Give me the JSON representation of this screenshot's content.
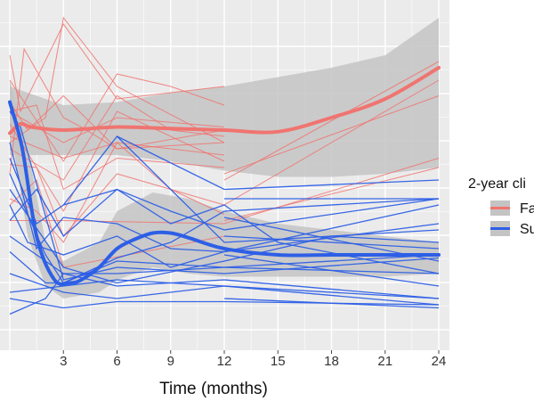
{
  "chart_data": {
    "type": "line",
    "xlabel": "Time (months)",
    "ylabel": "",
    "x_ticks": [
      "3",
      "6",
      "9",
      "12",
      "15",
      "18",
      "21",
      "24"
    ],
    "xlim": [
      0,
      25
    ],
    "ylim": [
      0,
      100
    ],
    "grid": true,
    "legend_placement": "right",
    "legend_title": "2-year cli",
    "colors": {
      "failure": "#f07470",
      "success": "#2d5fe6",
      "band": "#c4c4c4",
      "panel": "#ebebeb"
    },
    "series": [
      {
        "name": "Fa",
        "key": "failure",
        "smooth": [
          [
            0,
            37
          ],
          [
            0.6,
            34
          ],
          [
            1.2,
            35
          ],
          [
            3,
            36
          ],
          [
            6,
            35
          ],
          [
            9,
            35.5
          ],
          [
            12,
            36
          ],
          [
            15,
            36.5
          ],
          [
            18,
            32
          ],
          [
            21,
            26
          ],
          [
            24,
            16
          ]
        ],
        "band_upper": [
          [
            0,
            22
          ],
          [
            3,
            28
          ],
          [
            6,
            27
          ],
          [
            9,
            24
          ],
          [
            12,
            22
          ],
          [
            15,
            19
          ],
          [
            18,
            16
          ],
          [
            21,
            12
          ],
          [
            24,
            0
          ]
        ],
        "band_lower": [
          [
            0,
            44
          ],
          [
            3,
            44
          ],
          [
            6,
            44
          ],
          [
            9,
            46
          ],
          [
            12,
            49
          ],
          [
            15,
            51
          ],
          [
            18,
            51
          ],
          [
            21,
            50
          ],
          [
            24,
            48
          ]
        ],
        "patients": [
          [
            [
              0,
              12
            ],
            [
              0.6,
              30
            ],
            [
              3,
              2
            ],
            [
              6,
              26
            ],
            [
              12,
              22
            ]
          ],
          [
            [
              0,
              30
            ],
            [
              1.5,
              28
            ],
            [
              3,
              55
            ],
            [
              6,
              45
            ],
            [
              12,
              48
            ]
          ],
          [
            [
              0,
              30
            ],
            [
              3,
              40
            ],
            [
              6,
              32
            ],
            [
              12,
              35
            ]
          ],
          [
            [
              0,
              50
            ],
            [
              0.8,
              10
            ],
            [
              3,
              32
            ],
            [
              4,
              35
            ],
            [
              6,
              42
            ],
            [
              12,
              40
            ]
          ],
          [
            [
              0,
              27
            ],
            [
              1,
              36
            ],
            [
              3,
              25
            ],
            [
              6,
              42
            ],
            [
              12,
              36
            ]
          ],
          [
            [
              0,
              20
            ],
            [
              3,
              46
            ],
            [
              6,
              18
            ],
            [
              9,
              22
            ],
            [
              12,
              28
            ]
          ],
          [
            [
              0,
              40
            ],
            [
              2,
              32
            ],
            [
              3,
              0
            ],
            [
              6,
              22
            ],
            [
              12,
              40
            ]
          ],
          [
            [
              0,
              47
            ],
            [
              1.5,
              48
            ],
            [
              3,
              70
            ],
            [
              6,
              50
            ],
            [
              12,
              60
            ]
          ],
          [
            [
              0,
              34
            ],
            [
              3,
              62
            ],
            [
              6,
              30
            ],
            [
              12,
              46
            ]
          ],
          [
            [
              0,
              42
            ],
            [
              3,
              52
            ],
            [
              6,
              25
            ],
            [
              9,
              36
            ],
            [
              12,
              38
            ]
          ],
          [
            [
              0,
              58
            ],
            [
              1.5,
              62
            ],
            [
              3,
              72
            ],
            [
              6,
              40
            ],
            [
              9,
              55
            ],
            [
              12,
              63
            ]
          ],
          [
            [
              0,
              38
            ],
            [
              3,
              45
            ],
            [
              6,
              40
            ],
            [
              12,
              44
            ]
          ],
          [
            [
              0,
              60
            ],
            [
              1.5,
              52
            ],
            [
              3,
              80
            ],
            [
              12,
              70
            ]
          ],
          [
            [
              0,
              65
            ],
            [
              3,
              65
            ],
            [
              12,
              66
            ],
            [
              24,
              45
            ]
          ],
          [
            [
              12,
              60
            ],
            [
              24,
              20
            ]
          ],
          [
            [
              12,
              52
            ],
            [
              24,
              14
            ]
          ],
          [
            [
              12,
              50
            ],
            [
              24,
              25
            ]
          ],
          [
            [
              12,
              65
            ],
            [
              24,
              48
            ]
          ]
        ]
      },
      {
        "name": "Su",
        "key": "success",
        "smooth": [
          [
            0,
            27
          ],
          [
            0.7,
            42
          ],
          [
            1.5,
            70
          ],
          [
            2.5,
            84
          ],
          [
            3.4,
            85
          ],
          [
            4,
            84
          ],
          [
            5,
            80
          ],
          [
            6,
            74
          ],
          [
            7,
            71
          ],
          [
            8,
            69
          ],
          [
            9,
            69
          ],
          [
            10,
            70.5
          ],
          [
            12,
            74
          ],
          [
            15,
            76
          ],
          [
            18,
            76
          ],
          [
            21,
            76
          ],
          [
            24,
            76
          ]
        ],
        "band_upper": [
          [
            0,
            20
          ],
          [
            1,
            42
          ],
          [
            2,
            72
          ],
          [
            3,
            78
          ],
          [
            5,
            72
          ],
          [
            6,
            62
          ],
          [
            8,
            56
          ],
          [
            10,
            58
          ],
          [
            12,
            62
          ],
          [
            15,
            66
          ],
          [
            18,
            68
          ],
          [
            21,
            70
          ],
          [
            24,
            72
          ]
        ],
        "band_lower": [
          [
            0,
            34
          ],
          [
            1,
            70
          ],
          [
            2,
            86
          ],
          [
            3,
            90
          ],
          [
            5,
            88
          ],
          [
            6,
            84
          ],
          [
            8,
            80
          ],
          [
            10,
            82
          ],
          [
            12,
            83
          ],
          [
            15,
            83
          ],
          [
            18,
            83
          ],
          [
            21,
            83
          ],
          [
            24,
            82
          ]
        ],
        "patients": [
          [
            [
              0,
              30
            ],
            [
              0.6,
              35
            ],
            [
              3,
              84
            ],
            [
              6,
              80
            ],
            [
              12,
              82
            ],
            [
              24,
              77
            ]
          ],
          [
            [
              0,
              45
            ],
            [
              1.5,
              66
            ],
            [
              3,
              60
            ],
            [
              6,
              38
            ],
            [
              12,
              55
            ],
            [
              24,
              52
            ]
          ],
          [
            [
              0,
              50
            ],
            [
              2,
              76
            ],
            [
              3,
              85
            ],
            [
              6,
              77
            ],
            [
              9,
              72
            ],
            [
              12,
              62
            ],
            [
              24,
              58
            ]
          ],
          [
            [
              0,
              75
            ],
            [
              2,
              85
            ],
            [
              3,
              85
            ],
            [
              6,
              78
            ],
            [
              12,
              80
            ],
            [
              24,
              82
            ]
          ],
          [
            [
              0,
              82
            ],
            [
              3,
              88
            ],
            [
              6,
              90
            ],
            [
              12,
              86
            ],
            [
              24,
              90
            ]
          ],
          [
            [
              0,
              95
            ],
            [
              2,
              90
            ],
            [
              3,
              82
            ],
            [
              6,
              82
            ],
            [
              12,
              80
            ],
            [
              24,
              76
            ]
          ],
          [
            [
              0,
              60
            ],
            [
              1,
              72
            ],
            [
              3,
              76
            ],
            [
              6,
              70
            ],
            [
              9,
              80
            ],
            [
              12,
              75
            ],
            [
              24,
              66
            ]
          ],
          [
            [
              0,
              70
            ],
            [
              3,
              82
            ],
            [
              6,
              86
            ],
            [
              12,
              84
            ],
            [
              24,
              90
            ]
          ],
          [
            [
              0,
              40
            ],
            [
              1.5,
              74
            ],
            [
              3,
              64
            ],
            [
              6,
              66
            ],
            [
              9,
              74
            ],
            [
              12,
              75
            ],
            [
              24,
              60
            ]
          ],
          [
            [
              0,
              88
            ],
            [
              3,
              86
            ],
            [
              6,
              84
            ],
            [
              12,
              86
            ],
            [
              24,
              92
            ]
          ],
          [
            [
              0,
              65
            ],
            [
              1.5,
              55
            ],
            [
              3,
              70
            ],
            [
              6,
              55
            ],
            [
              9,
              66
            ],
            [
              12,
              60
            ],
            [
              15,
              72
            ],
            [
              24,
              82
            ]
          ],
          [
            [
              0,
              90
            ],
            [
              3,
              93
            ],
            [
              6,
              91
            ],
            [
              12,
              91
            ],
            [
              24,
              92
            ]
          ],
          [
            [
              0,
              55
            ],
            [
              3,
              80
            ],
            [
              6,
              85
            ],
            [
              12,
              78
            ],
            [
              18,
              70
            ],
            [
              24,
              72
            ]
          ],
          [
            [
              3,
              60
            ],
            [
              6,
              55
            ],
            [
              9,
              62
            ],
            [
              12,
              68
            ],
            [
              24,
              58
            ]
          ],
          [
            [
              6,
              38
            ],
            [
              12,
              72
            ],
            [
              24,
              68
            ]
          ],
          [
            [
              12,
              58
            ],
            [
              24,
              58
            ]
          ],
          [
            [
              12,
              70
            ],
            [
              24,
              74
            ]
          ],
          [
            [
              12,
              64
            ],
            [
              24,
              78
            ]
          ],
          [
            [
              12,
              76
            ],
            [
              24,
              86
            ]
          ],
          [
            [
              12,
              90
            ],
            [
              24,
              93
            ]
          ]
        ]
      }
    ]
  }
}
